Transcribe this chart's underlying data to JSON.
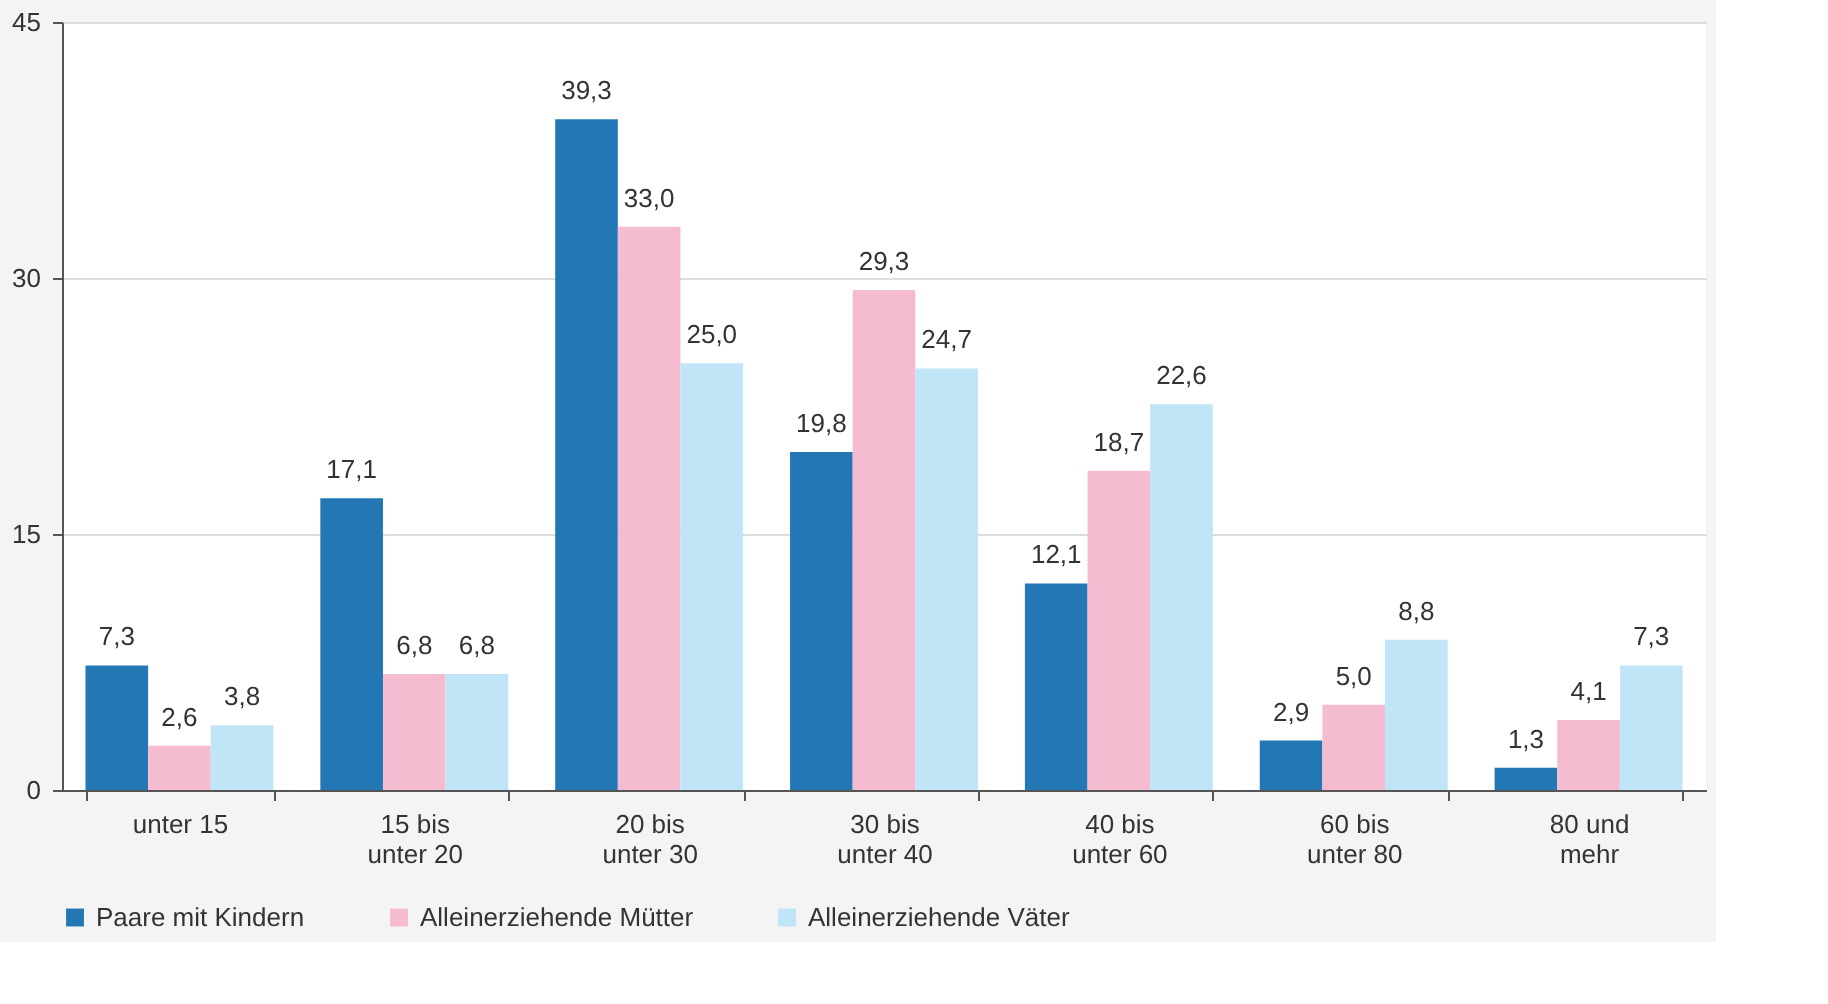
{
  "chart_data": {
    "type": "bar",
    "categories": [
      "unter 15",
      "15 bis\nunter 20",
      "20 bis\nunter 30",
      "30 bis\nunter 40",
      "40 bis\nunter 60",
      "60 bis\nunter 80",
      "80 und\nmehr"
    ],
    "series": [
      {
        "name": "Paare mit Kindern",
        "color": "#2277b4",
        "values": [
          7.3,
          17.1,
          39.3,
          19.8,
          12.1,
          2.9,
          1.3
        ],
        "value_labels": [
          "7,3",
          "17,1",
          "39,3",
          "19,8",
          "12,1",
          "2,9",
          "1,3"
        ]
      },
      {
        "name": "Alleinerziehende Mütter",
        "color": "#f5bcd1",
        "values": [
          2.6,
          6.8,
          33.0,
          29.3,
          18.7,
          5.0,
          4.1
        ],
        "value_labels": [
          "2,6",
          "6,8",
          "33,0",
          "29,3",
          "18,7",
          "5,0",
          "4,1"
        ]
      },
      {
        "name": "Alleinerziehende Väter",
        "color": "#bfe5f6",
        "values": [
          3.8,
          6.8,
          25.0,
          24.7,
          22.6,
          8.8,
          7.3
        ],
        "value_labels": [
          "3,8",
          "6,8",
          "25,0",
          "24,7",
          "22,6",
          "8,8",
          "7,3"
        ]
      }
    ],
    "ylim": [
      0,
      45
    ],
    "yticks": [
      0,
      15,
      30,
      45
    ],
    "grid": "y",
    "legend": "bottom"
  }
}
